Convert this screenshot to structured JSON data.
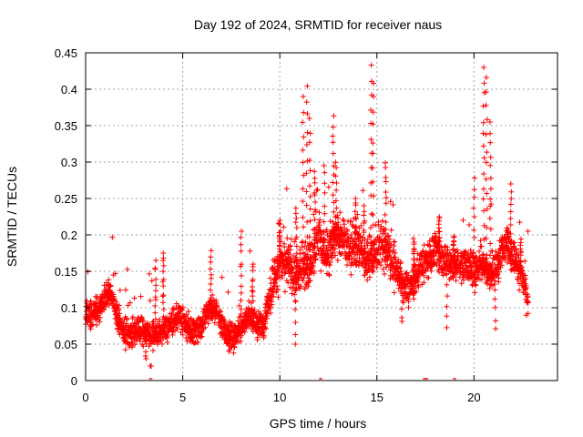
{
  "chart_data": {
    "type": "scatter",
    "title": "Day 192 of 2024, SRMTID for receiver naus",
    "xlabel": "GPS time / hours",
    "ylabel": "SRMTID / TECUs",
    "xlim": [
      0,
      24.3
    ],
    "ylim": [
      0,
      0.45
    ],
    "x_ticks": [
      0,
      5,
      10,
      15,
      20
    ],
    "y_ticks": [
      0,
      0.05,
      0.1,
      0.15,
      0.2,
      0.25,
      0.3,
      0.35,
      0.4,
      0.45
    ],
    "x_tick_labels": [
      "0",
      "5",
      "10",
      "15",
      "20"
    ],
    "y_tick_labels": [
      "0",
      "0.05",
      "0.1",
      "0.15",
      "0.2",
      "0.25",
      "0.3",
      "0.35",
      "0.4",
      "0.45"
    ],
    "grid": true,
    "marker": "+",
    "color": "#ff0000",
    "series": [
      {
        "name": "SRMTID",
        "trend": {
          "x": [
            0.0,
            0.3,
            0.7,
            1.0,
            1.3,
            1.6,
            2.0,
            2.4,
            2.8,
            3.2,
            3.6,
            4.0,
            4.4,
            4.8,
            5.2,
            5.6,
            6.0,
            6.4,
            6.8,
            7.2,
            7.6,
            8.0,
            8.4,
            8.8,
            9.2,
            9.6,
            10.0,
            10.4,
            10.8,
            11.2,
            11.6,
            12.0,
            12.4,
            12.8,
            13.2,
            13.6,
            14.0,
            14.4,
            14.8,
            15.2,
            15.6,
            16.0,
            16.4,
            16.8,
            17.2,
            17.6,
            18.0,
            18.4,
            18.8,
            19.2,
            19.6,
            20.0,
            20.4,
            20.8,
            21.2,
            21.6,
            22.0,
            22.4,
            22.8
          ],
          "y": [
            0.09,
            0.09,
            0.1,
            0.115,
            0.12,
            0.09,
            0.065,
            0.065,
            0.07,
            0.065,
            0.06,
            0.07,
            0.075,
            0.09,
            0.075,
            0.065,
            0.08,
            0.1,
            0.09,
            0.065,
            0.06,
            0.07,
            0.09,
            0.075,
            0.08,
            0.13,
            0.16,
            0.165,
            0.14,
            0.155,
            0.165,
            0.2,
            0.17,
            0.195,
            0.2,
            0.18,
            0.185,
            0.165,
            0.17,
            0.19,
            0.175,
            0.15,
            0.13,
            0.125,
            0.155,
            0.165,
            0.18,
            0.17,
            0.16,
            0.155,
            0.16,
            0.15,
            0.16,
            0.145,
            0.155,
            0.195,
            0.17,
            0.15,
            0.11
          ]
        },
        "spikes": [
          {
            "x": 3.35,
            "y": 0.02
          },
          {
            "x": 3.6,
            "y": 0.165
          },
          {
            "x": 4.0,
            "y": 0.175
          },
          {
            "x": 6.45,
            "y": 0.18
          },
          {
            "x": 8.0,
            "y": 0.205
          },
          {
            "x": 8.6,
            "y": 0.16
          },
          {
            "x": 10.0,
            "y": 0.22
          },
          {
            "x": 10.85,
            "y": 0.24
          },
          {
            "x": 11.2,
            "y": 0.39
          },
          {
            "x": 11.4,
            "y": 0.405
          },
          {
            "x": 11.55,
            "y": 0.36
          },
          {
            "x": 11.8,
            "y": 0.29
          },
          {
            "x": 12.3,
            "y": 0.295
          },
          {
            "x": 12.75,
            "y": 0.365
          },
          {
            "x": 12.9,
            "y": 0.3
          },
          {
            "x": 13.9,
            "y": 0.25
          },
          {
            "x": 14.35,
            "y": 0.24
          },
          {
            "x": 14.7,
            "y": 0.435
          },
          {
            "x": 14.8,
            "y": 0.41
          },
          {
            "x": 15.45,
            "y": 0.3
          },
          {
            "x": 16.9,
            "y": 0.195
          },
          {
            "x": 18.2,
            "y": 0.225
          },
          {
            "x": 18.95,
            "y": 0.2
          },
          {
            "x": 20.0,
            "y": 0.28
          },
          {
            "x": 20.5,
            "y": 0.43
          },
          {
            "x": 20.65,
            "y": 0.42
          },
          {
            "x": 20.85,
            "y": 0.355
          },
          {
            "x": 21.9,
            "y": 0.27
          },
          {
            "x": 22.4,
            "y": 0.195
          }
        ],
        "dips": [
          {
            "x": 3.1,
            "y": 0.03
          },
          {
            "x": 7.4,
            "y": 0.04
          },
          {
            "x": 10.8,
            "y": 0.05
          },
          {
            "x": 16.3,
            "y": 0.08
          },
          {
            "x": 18.6,
            "y": 0.07
          },
          {
            "x": 21.1,
            "y": 0.07
          }
        ]
      }
    ],
    "baseline_markers_x": [
      3.35,
      12.1,
      17.45,
      17.55,
      19.0
    ]
  }
}
